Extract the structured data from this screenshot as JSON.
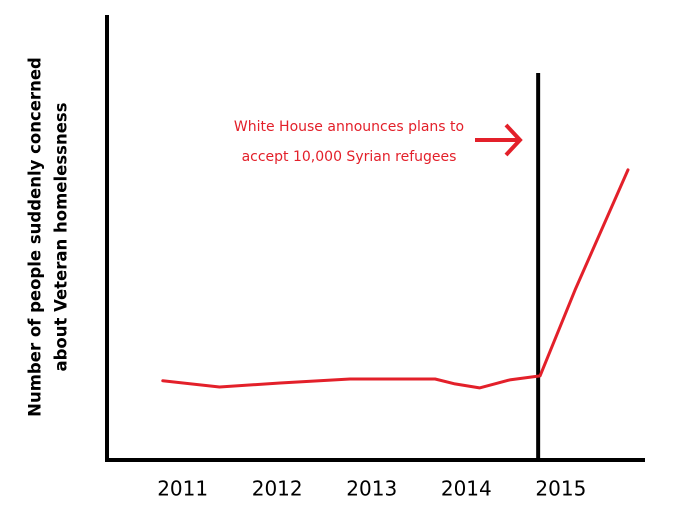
{
  "chart_data": {
    "type": "line",
    "y_label": [
      "Number of people suddenly concerned",
      "about Veteran homelessness"
    ],
    "annotation": {
      "lines": [
        "White House announces plans to",
        "accept 10,000 Syrian refugees"
      ],
      "x": 2014.76
    },
    "x": [
      2010.79,
      2011.39,
      2012.03,
      2012.77,
      2013.67,
      2013.88,
      2014.14,
      2014.46,
      2014.78,
      2015.15,
      2015.71
    ],
    "series": [
      {
        "color": "#e3202a",
        "values": [
          17.8,
          16.4,
          17.3,
          18.2,
          18.2,
          17.1,
          16.2,
          18.0,
          18.9,
          38.2,
          65.2
        ]
      }
    ],
    "xlim": [
      2010.2,
      2015.89
    ],
    "xticks": [
      2011,
      2012,
      2013,
      2014,
      2015
    ],
    "ylim": [
      0,
      100
    ]
  }
}
